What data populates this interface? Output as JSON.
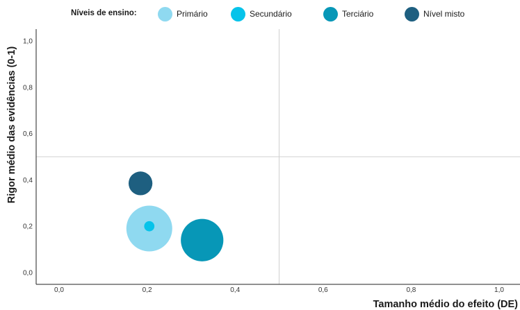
{
  "chart_data": {
    "type": "scatter",
    "subtype": "bubble",
    "title": "",
    "xlabel": "Tamanho médio do efeito (DE)",
    "ylabel": "Rigor médio das evidências (0-1)",
    "xlim": [
      -0.05,
      1.05
    ],
    "ylim": [
      -0.05,
      1.05
    ],
    "x_ticks": [
      "0,0",
      "0,2",
      "0,4",
      "0,6",
      "0,8",
      "1,0"
    ],
    "y_ticks": [
      "0,0",
      "0,2",
      "0,4",
      "0,6",
      "0,8",
      "1,0"
    ],
    "reference_lines": {
      "x": 0.5,
      "y": 0.5
    },
    "grid": false,
    "legend": {
      "title": "Níveis de ensino:",
      "position": "top",
      "entries": [
        {
          "name": "Primário",
          "color": "#8fd9f0"
        },
        {
          "name": "Secundário",
          "color": "#06c3ea"
        },
        {
          "name": "Terciário",
          "color": "#0797b7"
        },
        {
          "name": "Nível misto",
          "color": "#1e5f80"
        }
      ]
    },
    "series": [
      {
        "name": "Primário",
        "color": "#8fd9f0",
        "points": [
          {
            "x": 0.205,
            "y": 0.19,
            "size": 1.0
          }
        ]
      },
      {
        "name": "Terciário",
        "color": "#0797b7",
        "points": [
          {
            "x": 0.325,
            "y": 0.14,
            "size": 0.86
          }
        ]
      },
      {
        "name": "Nível misto",
        "color": "#1e5f80",
        "points": [
          {
            "x": 0.185,
            "y": 0.385,
            "size": 0.27
          }
        ]
      },
      {
        "name": "Secundário",
        "color": "#06c3ea",
        "points": [
          {
            "x": 0.205,
            "y": 0.2,
            "size": 0.05
          }
        ]
      }
    ]
  }
}
